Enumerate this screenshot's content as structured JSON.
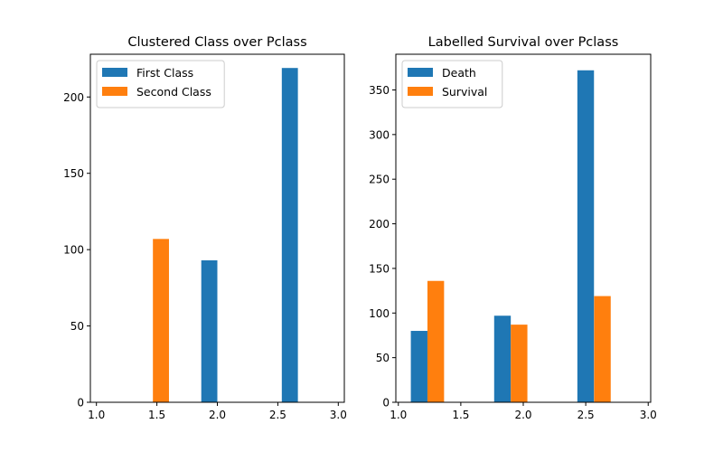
{
  "chart_data": [
    {
      "type": "bar",
      "title": "Clustered Class over Pclass",
      "xlabel": "",
      "ylabel": "",
      "xlim": [
        0.95,
        3.05
      ],
      "ylim": [
        0,
        228
      ],
      "xticks": [
        1.0,
        1.5,
        2.0,
        2.5,
        3.0
      ],
      "xtick_labels": [
        "1.0",
        "1.5",
        "2.0",
        "2.5",
        "3.0"
      ],
      "yticks": [
        0,
        50,
        100,
        150,
        200
      ],
      "ytick_labels": [
        "0",
        "50",
        "100",
        "150",
        "200"
      ],
      "bar_width": 0.133,
      "grid": false,
      "legend_position": "upper-left",
      "series": [
        {
          "name": "First Class",
          "color": "#1f77b4",
          "x": [
            1.0,
            1.867,
            2.533
          ],
          "values": [
            0,
            93,
            219
          ]
        },
        {
          "name": "Second Class",
          "color": "#ff7f0e",
          "x": [
            1.467,
            2.133,
            2.8
          ],
          "values": [
            107,
            0,
            0
          ]
        }
      ]
    },
    {
      "type": "bar",
      "title": "Labelled Survival over Pclass",
      "xlabel": "",
      "ylabel": "",
      "xlim": [
        0.98,
        3.02
      ],
      "ylim": [
        0,
        390
      ],
      "xticks": [
        1.0,
        1.5,
        2.0,
        2.5,
        3.0
      ],
      "xtick_labels": [
        "1.0",
        "1.5",
        "2.0",
        "2.5",
        "3.0"
      ],
      "yticks": [
        0,
        50,
        100,
        150,
        200,
        250,
        300,
        350
      ],
      "ytick_labels": [
        "0",
        "50",
        "100",
        "150",
        "200",
        "250",
        "300",
        "350"
      ],
      "bar_width": 0.133,
      "grid": false,
      "legend_position": "upper-left",
      "series": [
        {
          "name": "Death",
          "color": "#1f77b4",
          "x": [
            1.1,
            1.767,
            2.433
          ],
          "values": [
            80,
            97,
            372
          ]
        },
        {
          "name": "Survival",
          "color": "#ff7f0e",
          "x": [
            1.233,
            1.9,
            2.567
          ],
          "values": [
            136,
            87,
            119
          ]
        }
      ]
    }
  ]
}
